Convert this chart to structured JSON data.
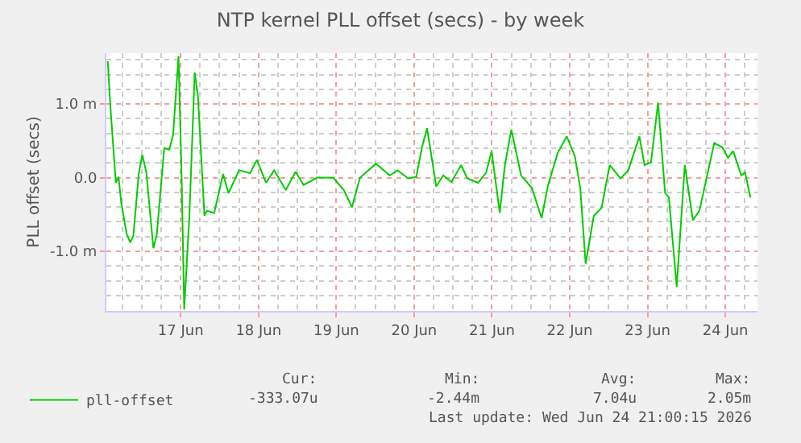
{
  "chart_data": {
    "type": "line",
    "title": "NTP kernel PLL offset (secs) - by week",
    "ylabel": "PLL offset (secs)",
    "x": [
      "--06-16T01:30",
      "--06-16T02:20",
      "--06-16T04:00",
      "--06-16T04:50",
      "--06-16T05:40",
      "--06-16T07:20",
      "--06-16T08:25",
      "--06-16T09:25",
      "--06-16T11:05",
      "--06-16T12:10",
      "--06-16T13:25",
      "--06-16T15:35",
      "--06-16T16:40",
      "--06-16T18:55",
      "--06-16T20:30",
      "--06-16T21:40",
      "--06-16T23:20",
      "--06-17T00:20",
      "--06-17T01:05",
      "--06-17T02:40",
      "--06-17T04:20",
      "--06-17T05:20",
      "--06-17T07:20",
      "--06-17T08:05",
      "--06-17T10:20",
      "--06-17T13:05",
      "--06-17T14:45",
      "--06-17T18:00",
      "--06-17T21:25",
      "--06-17T23:30",
      "--06-18T02:20",
      "--06-18T04:50",
      "--06-18T08:25",
      "--06-18T11:25",
      "--06-18T13:55",
      "--06-18T18:05",
      "--06-18T23:05",
      "--06-19T02:20",
      "--06-19T04:50",
      "--06-19T07:20",
      "--06-19T12:15",
      "--06-19T16:25",
      "--06-19T18:55",
      "--06-19T22:10",
      "--06-20T00:40",
      "--06-20T02:25",
      "--06-20T04:00",
      "--06-20T06:50",
      "--06-20T09:00",
      "--06-20T11:30",
      "--06-20T14:30",
      "--06-20T16:25",
      "--06-20T19:45",
      "--06-20T22:15",
      "--06-20T23:55",
      "--06-21T02:25",
      "--06-21T04:00",
      "--06-21T06:00",
      "--06-21T09:00",
      "--06-21T12:20",
      "--06-21T15:20",
      "--06-21T17:20",
      "--06-21T20:15",
      "--06-21T23:05",
      "--06-22T01:35",
      "--06-22T03:15",
      "--06-22T04:55",
      "--06-22T07:25",
      "--06-22T09:50",
      "--06-22T12:20",
      "--06-22T15:40",
      "--06-22T18:05",
      "--06-22T21:30",
      "--06-22T23:05",
      "--06-23T01:05",
      "--06-23T03:15",
      "--06-23T05:25",
      "--06-23T06:35",
      "--06-23T09:00",
      "--06-23T11:30",
      "--06-23T14:00",
      "--06-23T16:00",
      "--06-23T20:35",
      "--06-23T23:05",
      "--06-24T00:50",
      "--06-24T02:25",
      "--06-24T04:55",
      "--06-24T06:05",
      "--06-24T07:45"
    ],
    "series": [
      {
        "name": "pll-offset",
        "color": "#00cc00",
        "values": [
          1.58,
          0.96,
          -0.07,
          0.01,
          -0.34,
          -0.76,
          -0.88,
          -0.79,
          0.06,
          0.31,
          0.07,
          -0.96,
          -0.76,
          0.4,
          0.38,
          0.58,
          1.65,
          -0.07,
          -1.79,
          -0.55,
          1.43,
          1.1,
          -0.52,
          -0.45,
          -0.48,
          0.05,
          -0.21,
          0.1,
          0.06,
          0.24,
          -0.07,
          0.1,
          -0.17,
          0.08,
          -0.1,
          0.0,
          0.0,
          -0.17,
          -0.4,
          0.0,
          0.19,
          0.03,
          0.1,
          -0.01,
          0.01,
          0.41,
          0.67,
          -0.12,
          0.03,
          -0.06,
          0.17,
          -0.01,
          -0.07,
          0.07,
          0.36,
          -0.48,
          0.17,
          0.65,
          0.03,
          -0.14,
          -0.55,
          -0.1,
          0.33,
          0.56,
          0.29,
          -0.14,
          -1.17,
          -0.52,
          -0.41,
          0.17,
          -0.01,
          0.1,
          0.56,
          0.17,
          0.21,
          1.02,
          -0.21,
          -0.27,
          -1.48,
          0.17,
          -0.58,
          -0.45,
          0.47,
          0.41,
          0.27,
          0.36,
          0.03,
          0.07,
          -0.27
        ]
      }
    ],
    "xlim": [
      "--06-16T01:05",
      "--06-24T09:55"
    ],
    "xticks": [
      {
        "value": "--06-17",
        "label": "17 Jun"
      },
      {
        "value": "--06-18",
        "label": "18 Jun"
      },
      {
        "value": "--06-19",
        "label": "19 Jun"
      },
      {
        "value": "--06-20",
        "label": "20 Jun"
      },
      {
        "value": "--06-21",
        "label": "21 Jun"
      },
      {
        "value": "--06-22",
        "label": "22 Jun"
      },
      {
        "value": "--06-23",
        "label": "23 Jun"
      },
      {
        "value": "--06-24",
        "label": "24 Jun"
      }
    ],
    "ylim": [
      -1.81,
      1.69
    ],
    "yticks": [
      {
        "value": -1,
        "label": "-1.0 m"
      },
      {
        "value": 0,
        "label": "0.0"
      },
      {
        "value": 1,
        "label": "1.0 m"
      }
    ],
    "grid": true,
    "legend": "bottom left",
    "annotations": [
      "Cur:",
      "-333.07u",
      "Min:",
      "-2.44m",
      "Avg:",
      "7.04u",
      "Max:",
      "2.05m",
      "Last update: Wed Jun 24 21:00:15 2026"
    ]
  }
}
